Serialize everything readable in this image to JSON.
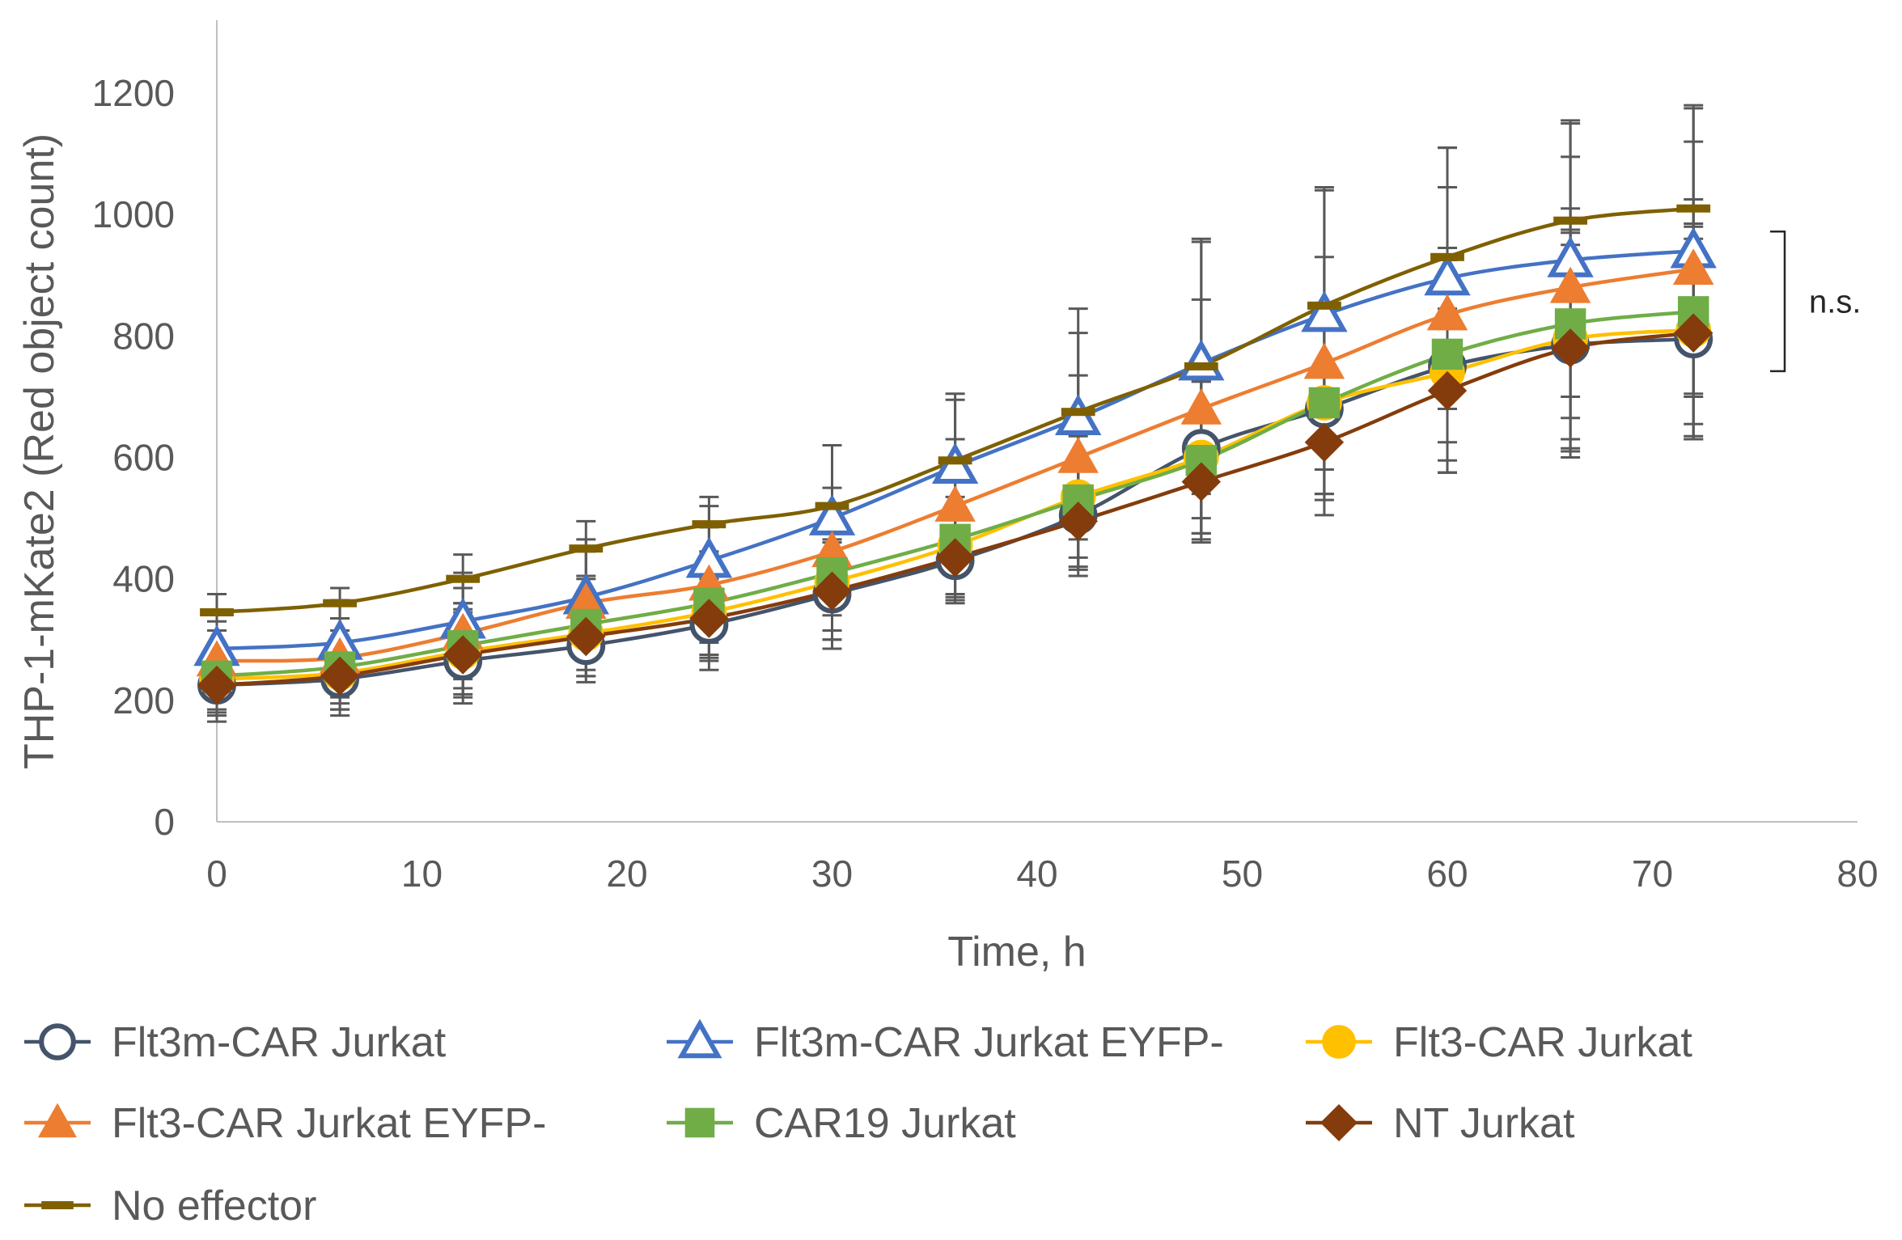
{
  "chart_data": {
    "type": "line",
    "title": "",
    "xlabel": "Time, h",
    "ylabel": "THP-1-mKate2 (Red object count)",
    "xlim": [
      0,
      80
    ],
    "ylim": [
      0,
      1300
    ],
    "xticks": [
      0,
      10,
      20,
      30,
      40,
      50,
      60,
      70,
      80
    ],
    "yticks": [
      0,
      200,
      400,
      600,
      800,
      1000,
      1200
    ],
    "grid": false,
    "legend_position": "bottom",
    "annotation": "n.s.",
    "x": [
      0,
      6,
      12,
      18,
      24,
      30,
      36,
      42,
      48,
      54,
      60,
      66,
      72
    ],
    "series": [
      {
        "name": "Flt3m-CAR Jurkat",
        "color": "#44546A",
        "marker": "open-circle",
        "values": [
          225,
          235,
          265,
          290,
          325,
          375,
          430,
          505,
          615,
          680,
          750,
          785,
          795
        ],
        "errors": [
          60,
          60,
          70,
          60,
          75,
          90,
          70,
          90,
          140,
          150,
          175,
          185,
          165
        ]
      },
      {
        "name": "Flt3m-CAR Jurkat EYFP-",
        "color": "#4472C4",
        "marker": "open-triangle",
        "values": [
          285,
          295,
          330,
          370,
          430,
          500,
          585,
          665,
          755,
          835,
          895,
          925,
          940
        ],
        "errors": [
          60,
          70,
          80,
          95,
          90,
          120,
          110,
          140,
          200,
          205,
          215,
          225,
          235
        ]
      },
      {
        "name": "Flt3-CAR Jurkat",
        "color": "#FFC000",
        "marker": "filled-circle",
        "values": [
          235,
          245,
          280,
          310,
          345,
          395,
          455,
          535,
          600,
          690,
          740,
          795,
          810
        ],
        "errors": [
          55,
          60,
          70,
          70,
          75,
          95,
          80,
          100,
          125,
          150,
          165,
          180,
          175
        ]
      },
      {
        "name": "Flt3-CAR Jurkat EYFP-",
        "color": "#ED7D31",
        "marker": "filled-triangle",
        "values": [
          265,
          270,
          310,
          360,
          390,
          445,
          520,
          600,
          680,
          755,
          835,
          880,
          910
        ],
        "errors": [
          65,
          65,
          75,
          85,
          95,
          105,
          110,
          135,
          180,
          175,
          210,
          215,
          210
        ]
      },
      {
        "name": "CAR19 Jurkat",
        "color": "#70AD47",
        "marker": "filled-square",
        "values": [
          240,
          255,
          290,
          325,
          360,
          410,
          465,
          530,
          595,
          690,
          770,
          820,
          840
        ],
        "errors": [
          55,
          60,
          70,
          75,
          85,
          95,
          95,
          110,
          130,
          150,
          175,
          190,
          185
        ]
      },
      {
        "name": "NT Jurkat",
        "color": "#843C0C",
        "marker": "filled-diamond",
        "values": [
          225,
          240,
          275,
          305,
          335,
          380,
          435,
          495,
          560,
          625,
          710,
          780,
          805
        ],
        "errors": [
          50,
          55,
          70,
          65,
          70,
          80,
          70,
          90,
          100,
          120,
          135,
          170,
          175
        ]
      },
      {
        "name": "No effector",
        "color": "#7F6000",
        "marker": "dash",
        "values": [
          345,
          360,
          400,
          450,
          490,
          520,
          595,
          675,
          750,
          850,
          930,
          990,
          1010
        ],
        "errors": [
          30,
          25,
          40,
          45,
          45,
          100,
          110,
          170,
          210,
          195,
          180,
          165,
          170
        ]
      }
    ]
  }
}
